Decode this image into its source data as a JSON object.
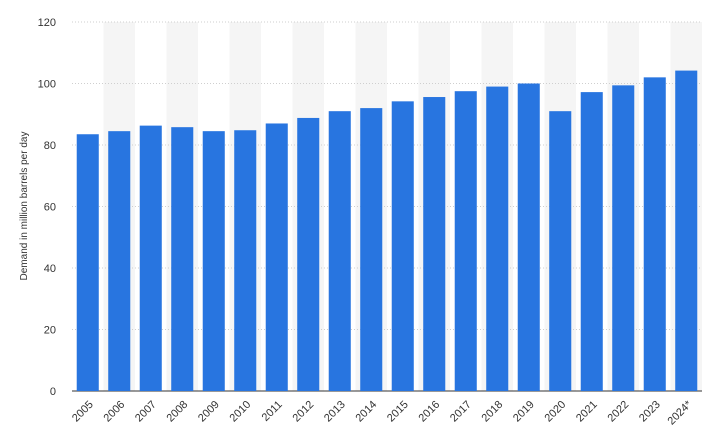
{
  "chart_data": {
    "type": "bar",
    "title": "",
    "xlabel": "",
    "ylabel": "Demand in million barrels per day",
    "ylim": [
      0,
      120
    ],
    "yticks": [
      0,
      20,
      40,
      60,
      80,
      100,
      120
    ],
    "grid": "horizontal dotted",
    "alternating_column_shading": true,
    "categories": [
      "2005",
      "2006",
      "2007",
      "2008",
      "2009",
      "2010",
      "2011",
      "2012",
      "2013",
      "2014",
      "2015",
      "2016",
      "2017",
      "2018",
      "2019",
      "2020",
      "2021",
      "2022",
      "2023",
      "2024*"
    ],
    "values": [
      83.5,
      84.5,
      86.3,
      85.8,
      84.5,
      84.8,
      87,
      88.8,
      91,
      92,
      94.2,
      95.6,
      97.5,
      99,
      100,
      91,
      97.2,
      99.4,
      102,
      104.2
    ],
    "colors": {
      "bar": "#2875e0",
      "grid": "#cfcfcf",
      "band": "#f5f5f5",
      "axis": "#333333"
    }
  }
}
